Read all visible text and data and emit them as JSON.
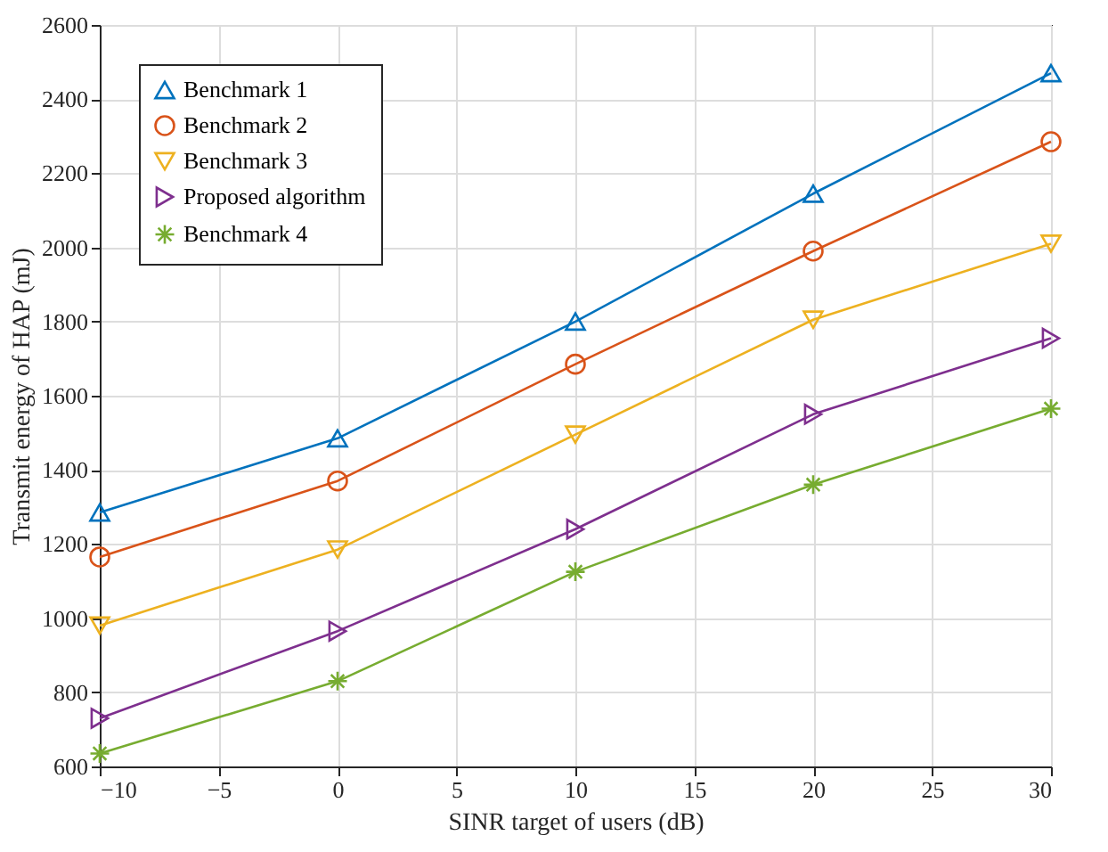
{
  "chart_data": {
    "type": "line",
    "xlabel": "SINR target of users (dB)",
    "ylabel": "Transmit energy of HAP (mJ)",
    "x": [
      -10,
      0,
      10,
      20,
      30
    ],
    "xlim": [
      -10,
      30
    ],
    "xticks": [
      -10,
      -5,
      0,
      5,
      10,
      15,
      20,
      25,
      30
    ],
    "ylim": [
      600,
      2600
    ],
    "yticks": [
      600,
      800,
      1000,
      1200,
      1400,
      1600,
      1800,
      2000,
      2200,
      2400,
      2600
    ],
    "grid": true,
    "legend": "top left",
    "line_style": "solid",
    "series": [
      {
        "name": "Benchmark 1",
        "color": "#0072bd",
        "marker": "triangle-up",
        "values": [
          1285,
          1485,
          1800,
          2145,
          2470
        ]
      },
      {
        "name": "Benchmark 2",
        "color": "#d95319",
        "marker": "circle",
        "values": [
          1165,
          1370,
          1685,
          1990,
          2285
        ]
      },
      {
        "name": "Benchmark 3",
        "color": "#edb120",
        "marker": "triangle-down",
        "values": [
          980,
          1185,
          1495,
          1805,
          2010
        ]
      },
      {
        "name": "Proposed algorithm",
        "color": "#7e2f8e",
        "marker": "triangle-right",
        "values": [
          730,
          965,
          1240,
          1550,
          1755
        ]
      },
      {
        "name": "Benchmark 4",
        "color": "#77ac30",
        "marker": "cross",
        "values": [
          635,
          830,
          1125,
          1360,
          1565
        ]
      }
    ]
  }
}
